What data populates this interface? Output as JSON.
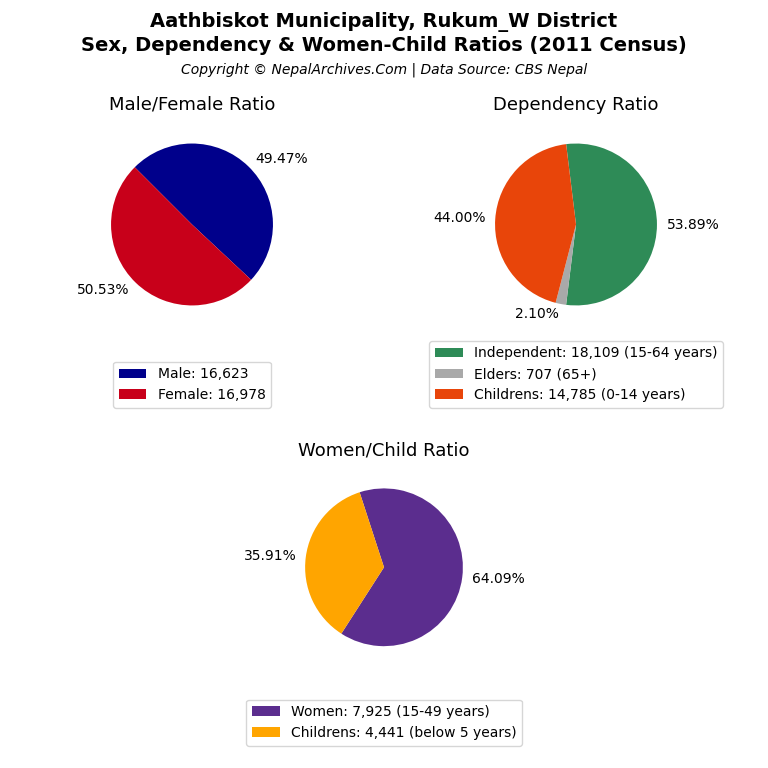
{
  "title": "Aathbiskot Municipality, Rukum_W District",
  "subtitle": "Sex, Dependency & Women-Child Ratios (2011 Census)",
  "annotations": [
    "Copyright © NepalArchives.Com | Data Source: CBS Nepal"
  ],
  "chart_data": [
    {
      "type": "pie",
      "title": "Male/Female Ratio",
      "categories": [
        "Male: 16,623",
        "Female: 16,978"
      ],
      "values": [
        49.47,
        50.53
      ],
      "value_labels": [
        "49.47%",
        "50.53%"
      ],
      "colors": [
        "#00008B",
        "#C8001A"
      ],
      "data_labels": true,
      "legend": "lower center"
    },
    {
      "type": "pie",
      "title": "Dependency Ratio",
      "categories": [
        "Independent: 18,109 (15-64 years)",
        "Elders: 707 (65+)",
        "Childrens: 14,785 (0-14 years)"
      ],
      "values": [
        53.89,
        2.1,
        44.0
      ],
      "value_labels": [
        "53.89%",
        "2.10%",
        "44.00%"
      ],
      "colors": [
        "#2E8B57",
        "#A9A9A9",
        "#E8450A"
      ],
      "data_labels": true,
      "legend": "lower center"
    },
    {
      "type": "pie",
      "title": "Women/Child Ratio",
      "categories": [
        "Women: 7,925 (15-49 years)",
        "Childrens: 4,441 (below 5 years)"
      ],
      "values": [
        64.09,
        35.91
      ],
      "value_labels": [
        "64.09%",
        "35.91%"
      ],
      "colors": [
        "#5B2D8E",
        "#FFA500"
      ],
      "data_labels": true,
      "legend": "lower center"
    }
  ]
}
